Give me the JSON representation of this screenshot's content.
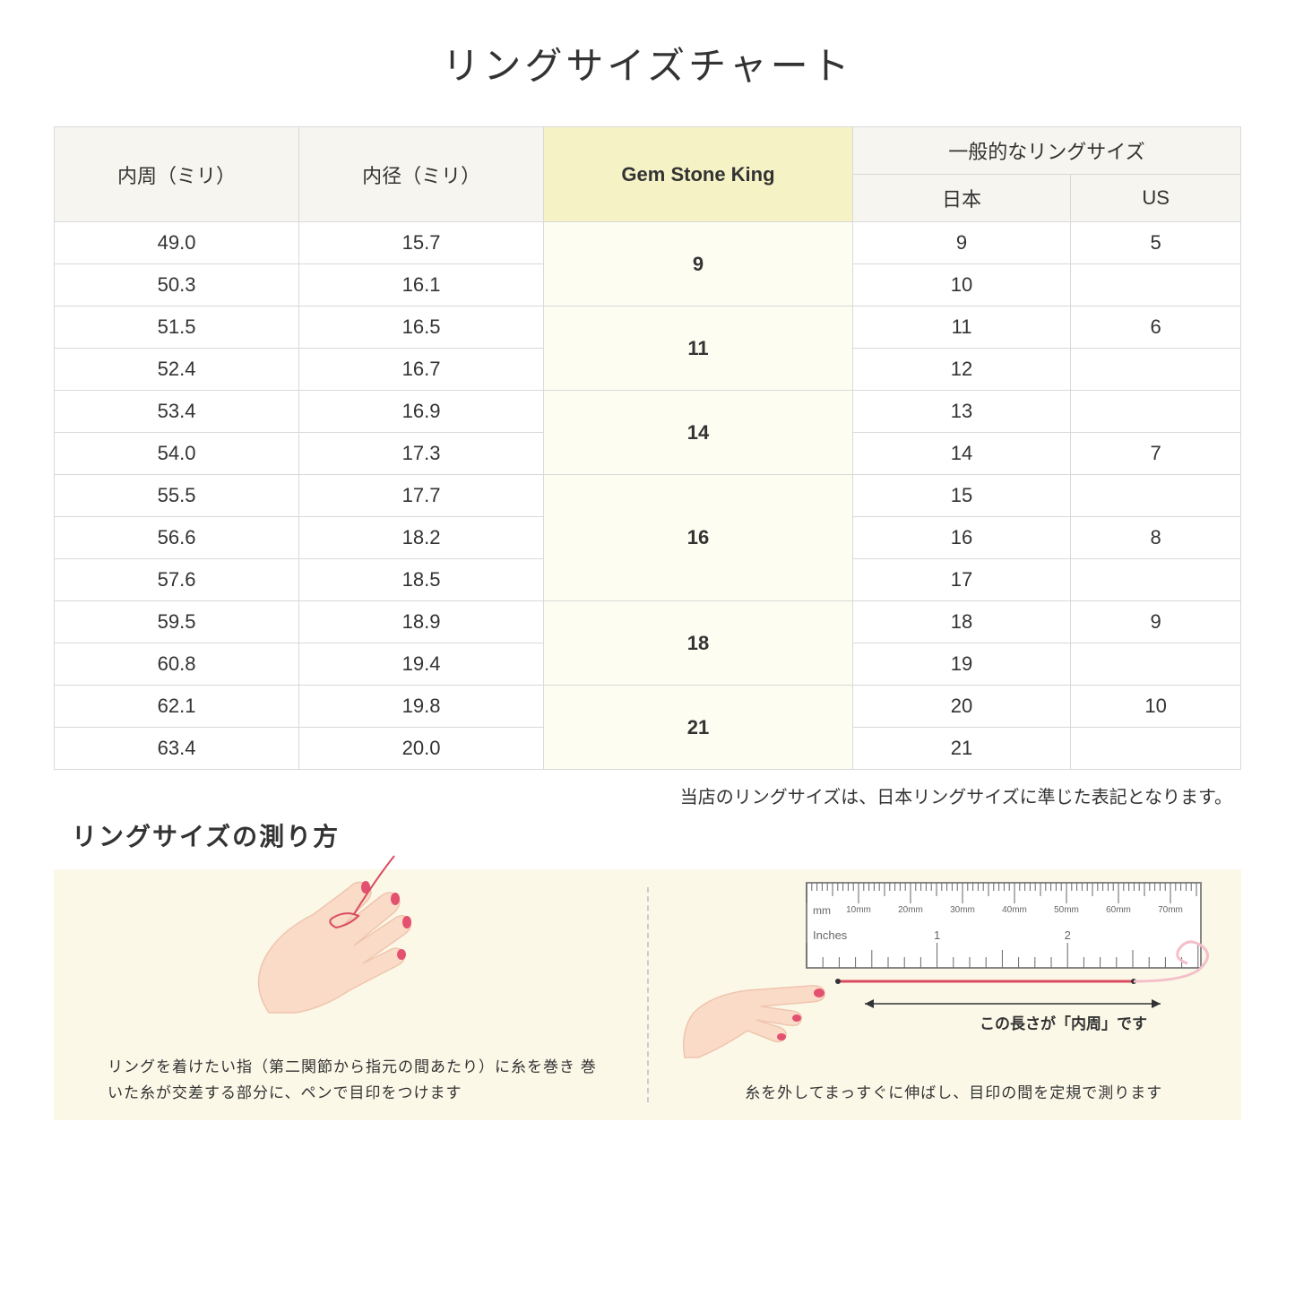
{
  "title": "リングサイズチャート",
  "headers": {
    "col1": "内周（ミリ）",
    "col2": "内径（ミリ）",
    "col3": "Gem Stone King",
    "col4_group": "一般的なリングサイズ",
    "col4": "日本",
    "col5": "US"
  },
  "groups": [
    {
      "gsk": "9",
      "rows": [
        {
          "circ": "49.0",
          "diam": "15.7",
          "jp": "9",
          "us": "5"
        },
        {
          "circ": "50.3",
          "diam": "16.1",
          "jp": "10",
          "us": ""
        }
      ]
    },
    {
      "gsk": "11",
      "rows": [
        {
          "circ": "51.5",
          "diam": "16.5",
          "jp": "11",
          "us": "6"
        },
        {
          "circ": "52.4",
          "diam": "16.7",
          "jp": "12",
          "us": ""
        }
      ]
    },
    {
      "gsk": "14",
      "rows": [
        {
          "circ": "53.4",
          "diam": "16.9",
          "jp": "13",
          "us": ""
        },
        {
          "circ": "54.0",
          "diam": "17.3",
          "jp": "14",
          "us": "7"
        }
      ]
    },
    {
      "gsk": "16",
      "rows": [
        {
          "circ": "55.5",
          "diam": "17.7",
          "jp": "15",
          "us": ""
        },
        {
          "circ": "56.6",
          "diam": "18.2",
          "jp": "16",
          "us": "8"
        },
        {
          "circ": "57.6",
          "diam": "18.5",
          "jp": "17",
          "us": ""
        }
      ]
    },
    {
      "gsk": "18",
      "rows": [
        {
          "circ": "59.5",
          "diam": "18.9",
          "jp": "18",
          "us": "9"
        },
        {
          "circ": "60.8",
          "diam": "19.4",
          "jp": "19",
          "us": ""
        }
      ]
    },
    {
      "gsk": "21",
      "rows": [
        {
          "circ": "62.1",
          "diam": "19.8",
          "jp": "20",
          "us": "10"
        },
        {
          "circ": "63.4",
          "diam": "20.0",
          "jp": "21",
          "us": ""
        }
      ]
    }
  ],
  "note": "当店のリングサイズは、日本リングサイズに準じた表記となります。",
  "howto": {
    "title": "リングサイズの測り方",
    "left_text": "リングを着けたい指（第二関節から指元の間あたり）に糸を巻き\n巻いた糸が交差する部分に、ペンで目印をつけます",
    "right_text": "糸を外してまっすぐに伸ばし、目印の間を定規で測ります",
    "arrow_label": "この長さが「内周」です",
    "ruler_mm": "mm",
    "ruler_inches": "Inches",
    "ruler_marks": [
      "10mm",
      "20mm",
      "30mm",
      "40mm",
      "50mm",
      "60mm",
      "70mm"
    ],
    "ruler_inch_marks": [
      "1",
      "2"
    ]
  },
  "colors": {
    "header_bg": "#f7f5ef",
    "gsk_header_bg": "#f5f3c6",
    "gsk_cell_bg": "#fdfdf2",
    "border": "#d9d9d9",
    "howto_bg": "#fbf8e8",
    "skin": "#f9dbc8",
    "skin_dark": "#f0c5ae",
    "nail": "#e4506f",
    "thread": "#d94b5f",
    "ruler_body": "#ffffff",
    "ruler_border": "#888888",
    "ruler_text": "#666666",
    "swirl": "#f4bfc9"
  }
}
